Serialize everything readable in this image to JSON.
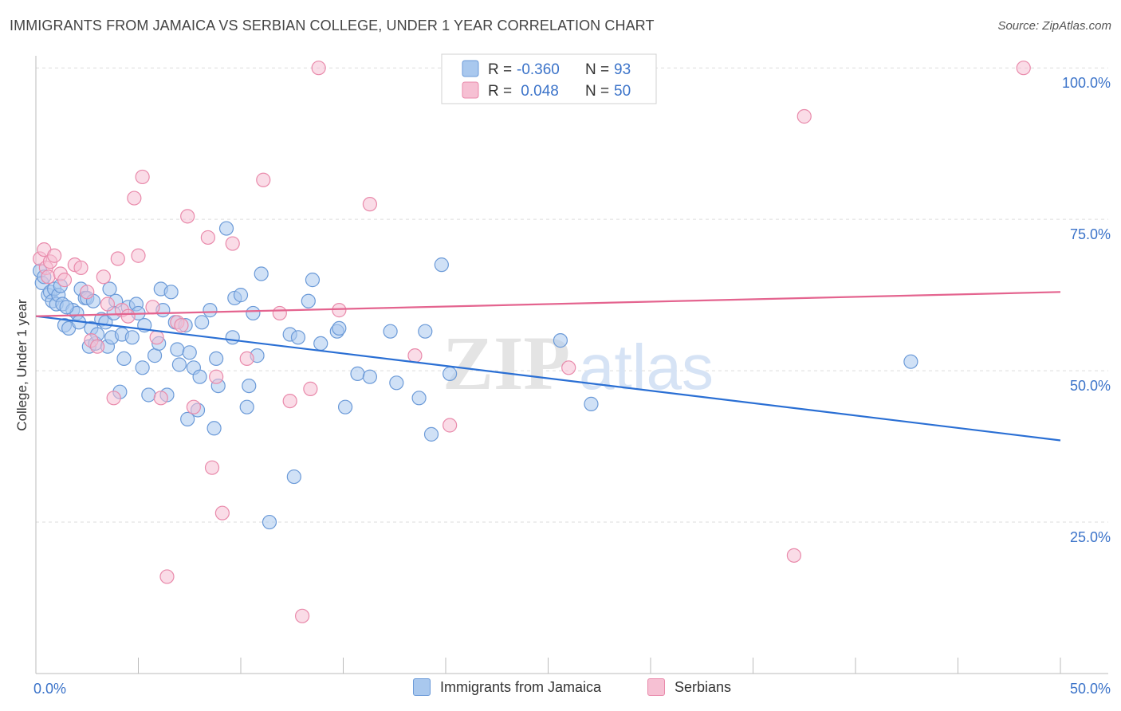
{
  "title": "IMMIGRANTS FROM JAMAICA VS SERBIAN COLLEGE, UNDER 1 YEAR CORRELATION CHART",
  "source": "Source: ZipAtlas.com",
  "watermark": {
    "zip": "ZIP",
    "atlas": "atlas"
  },
  "colors": {
    "blue_fill": "#a9c8ee",
    "blue_stroke": "#6b9ad8",
    "blue_line": "#2a6fd4",
    "pink_fill": "#f6c0d3",
    "pink_stroke": "#e98aab",
    "pink_line": "#e4648f",
    "axis_text": "#3b73c9",
    "grid": "#dddddd"
  },
  "legend_top": {
    "rows": [
      {
        "r_label": "R = ",
        "r_value": "-0.360",
        "n_label": "N = ",
        "n_value": "93"
      },
      {
        "r_label": "R = ",
        "r_value": " 0.048",
        "n_label": "N = ",
        "n_value": "50"
      }
    ]
  },
  "legend_bottom": {
    "items": [
      "Immigrants from Jamaica",
      "Serbians"
    ]
  },
  "chart_data": {
    "type": "scatter",
    "title": "IMMIGRANTS FROM JAMAICA VS SERBIAN COLLEGE, UNDER 1 YEAR CORRELATION CHART",
    "xlabel": "",
    "ylabel": "College, Under 1 year",
    "xlim": [
      0,
      50
    ],
    "ylim": [
      0,
      102
    ],
    "x_tick_labels": [
      "0.0%",
      "50.0%"
    ],
    "y_ticks": [
      25,
      50,
      75,
      100
    ],
    "y_tick_labels": [
      "25.0%",
      "50.0%",
      "75.0%",
      "100.0%"
    ],
    "grid": true,
    "legend_placement": "top-center",
    "series": [
      {
        "name": "Immigrants from Jamaica",
        "color": "#6b9ad8",
        "r": -0.36,
        "n": 93,
        "trend": {
          "x": [
            0,
            50
          ],
          "y": [
            59.0,
            38.5
          ]
        },
        "points": [
          [
            0.2,
            66.5
          ],
          [
            0.3,
            64.5
          ],
          [
            0.4,
            65.5
          ],
          [
            0.6,
            62.5
          ],
          [
            0.7,
            63.0
          ],
          [
            0.8,
            61.5
          ],
          [
            0.9,
            63.5
          ],
          [
            1.0,
            61.0
          ],
          [
            1.1,
            62.5
          ],
          [
            1.2,
            64.0
          ],
          [
            1.3,
            61.0
          ],
          [
            1.4,
            57.5
          ],
          [
            1.6,
            57.0
          ],
          [
            1.8,
            60.0
          ],
          [
            2.0,
            59.5
          ],
          [
            2.1,
            58.0
          ],
          [
            2.2,
            63.5
          ],
          [
            2.4,
            62.0
          ],
          [
            2.5,
            62.0
          ],
          [
            2.6,
            54.0
          ],
          [
            2.7,
            57.0
          ],
          [
            2.8,
            61.5
          ],
          [
            2.9,
            54.5
          ],
          [
            3.0,
            56.0
          ],
          [
            3.2,
            58.5
          ],
          [
            3.4,
            58.0
          ],
          [
            3.5,
            54.0
          ],
          [
            3.6,
            63.5
          ],
          [
            3.7,
            55.5
          ],
          [
            3.9,
            61.5
          ],
          [
            4.1,
            46.5
          ],
          [
            4.2,
            56.0
          ],
          [
            4.3,
            52.0
          ],
          [
            4.5,
            60.5
          ],
          [
            4.7,
            55.5
          ],
          [
            4.9,
            61.0
          ],
          [
            5.0,
            59.5
          ],
          [
            5.2,
            50.5
          ],
          [
            5.3,
            57.5
          ],
          [
            5.5,
            46.0
          ],
          [
            5.8,
            52.5
          ],
          [
            6.0,
            54.5
          ],
          [
            6.1,
            63.5
          ],
          [
            6.2,
            60.0
          ],
          [
            6.4,
            46.0
          ],
          [
            6.6,
            63.0
          ],
          [
            6.8,
            58.0
          ],
          [
            6.9,
            53.5
          ],
          [
            7.0,
            51.0
          ],
          [
            7.3,
            57.5
          ],
          [
            7.4,
            42.0
          ],
          [
            7.5,
            53.0
          ],
          [
            7.7,
            50.5
          ],
          [
            7.9,
            43.5
          ],
          [
            8.0,
            49.0
          ],
          [
            8.1,
            58.0
          ],
          [
            8.5,
            60.0
          ],
          [
            8.7,
            40.5
          ],
          [
            8.8,
            52.0
          ],
          [
            8.9,
            47.5
          ],
          [
            9.3,
            73.5
          ],
          [
            9.6,
            55.5
          ],
          [
            9.7,
            62.0
          ],
          [
            10.0,
            62.5
          ],
          [
            10.3,
            44.0
          ],
          [
            10.4,
            47.5
          ],
          [
            10.6,
            59.5
          ],
          [
            10.8,
            52.5
          ],
          [
            11.0,
            66.0
          ],
          [
            12.4,
            56.0
          ],
          [
            12.6,
            32.5
          ],
          [
            12.8,
            55.5
          ],
          [
            13.3,
            61.5
          ],
          [
            13.5,
            65.0
          ],
          [
            13.9,
            54.5
          ],
          [
            14.7,
            56.5
          ],
          [
            14.8,
            57.0
          ],
          [
            15.1,
            44.0
          ],
          [
            15.7,
            49.5
          ],
          [
            16.3,
            49.0
          ],
          [
            17.3,
            56.5
          ],
          [
            17.6,
            48.0
          ],
          [
            18.7,
            45.5
          ],
          [
            19.0,
            56.5
          ],
          [
            19.3,
            39.5
          ],
          [
            19.8,
            67.5
          ],
          [
            20.2,
            49.5
          ],
          [
            25.6,
            55.0
          ],
          [
            27.1,
            44.5
          ],
          [
            42.7,
            51.5
          ],
          [
            11.4,
            25.0
          ],
          [
            1.5,
            60.5
          ],
          [
            3.8,
            59.5
          ]
        ]
      },
      {
        "name": "Serbians",
        "color": "#e98aab",
        "r": 0.048,
        "n": 50,
        "trend": {
          "x": [
            0,
            50
          ],
          "y": [
            59.0,
            63.0
          ]
        },
        "points": [
          [
            0.2,
            68.5
          ],
          [
            0.4,
            70.0
          ],
          [
            0.5,
            67.0
          ],
          [
            0.6,
            65.5
          ],
          [
            0.7,
            68.0
          ],
          [
            0.9,
            69.0
          ],
          [
            1.2,
            66.0
          ],
          [
            1.4,
            65.0
          ],
          [
            1.9,
            67.5
          ],
          [
            2.2,
            67.0
          ],
          [
            2.5,
            63.0
          ],
          [
            2.7,
            55.0
          ],
          [
            3.0,
            54.0
          ],
          [
            3.3,
            65.5
          ],
          [
            3.5,
            61.0
          ],
          [
            3.8,
            45.5
          ],
          [
            4.0,
            68.5
          ],
          [
            4.2,
            60.0
          ],
          [
            4.5,
            59.0
          ],
          [
            4.8,
            78.5
          ],
          [
            5.0,
            69.0
          ],
          [
            5.2,
            82.0
          ],
          [
            5.7,
            60.5
          ],
          [
            5.9,
            55.5
          ],
          [
            6.1,
            45.5
          ],
          [
            6.4,
            16.0
          ],
          [
            6.9,
            58.0
          ],
          [
            7.1,
            57.5
          ],
          [
            7.4,
            75.5
          ],
          [
            7.7,
            44.0
          ],
          [
            8.4,
            72.0
          ],
          [
            8.6,
            34.0
          ],
          [
            8.8,
            49.0
          ],
          [
            9.1,
            26.5
          ],
          [
            9.6,
            71.0
          ],
          [
            10.3,
            52.0
          ],
          [
            11.1,
            81.5
          ],
          [
            11.9,
            59.5
          ],
          [
            12.4,
            45.0
          ],
          [
            13.0,
            9.5
          ],
          [
            13.4,
            47.0
          ],
          [
            13.8,
            100.0
          ],
          [
            14.8,
            60.0
          ],
          [
            16.3,
            77.5
          ],
          [
            18.5,
            52.5
          ],
          [
            20.2,
            41.0
          ],
          [
            26.0,
            50.5
          ],
          [
            37.0,
            19.5
          ],
          [
            37.5,
            92.0
          ],
          [
            48.2,
            100.0
          ]
        ]
      }
    ]
  }
}
